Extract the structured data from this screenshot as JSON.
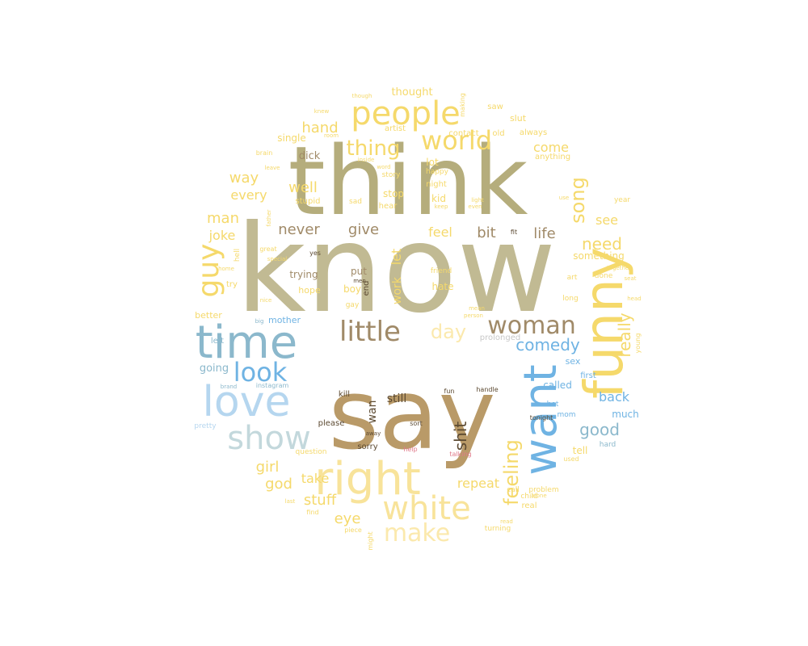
{
  "palette": {
    "olive": "#b5ad7c",
    "olive_light": "#c1ba93",
    "tan": "#b99a68",
    "gold": "#f5d96b",
    "gold_light": "#f8e39a",
    "cream": "#fbe9ad",
    "sky": "#6fb3e3",
    "steel": "#8bb8cc",
    "pale_blue": "#b5d6ef",
    "mist": "#c3d8dc",
    "brown": "#a08a68",
    "dark": "#5c4a32",
    "grey": "#c8c8c8",
    "pink": "#e07a8a"
  },
  "words": [
    {
      "t": "know",
      "c": "olive_light",
      "rot": 0
    },
    {
      "t": "think",
      "c": "olive",
      "rot": 0
    },
    {
      "t": "say",
      "c": "tan",
      "rot": 0
    },
    {
      "t": "right",
      "c": "gold_light",
      "rot": 0
    },
    {
      "t": "funny",
      "c": "gold",
      "rot": 270
    },
    {
      "t": "want",
      "c": "sky",
      "rot": 270
    },
    {
      "t": "time",
      "c": "steel",
      "rot": 0
    },
    {
      "t": "love",
      "c": "pale_blue",
      "rot": 0
    },
    {
      "t": "people",
      "c": "gold",
      "rot": 0
    },
    {
      "t": "show",
      "c": "mist",
      "rot": 0
    },
    {
      "t": "white",
      "c": "gold_light",
      "rot": 0
    },
    {
      "t": "world",
      "c": "gold",
      "rot": 0
    },
    {
      "t": "little",
      "c": "brown",
      "rot": 0
    },
    {
      "t": "woman",
      "c": "brown",
      "rot": 0
    },
    {
      "t": "make",
      "c": "cream",
      "rot": 0
    },
    {
      "t": "look",
      "c": "sky",
      "rot": 0
    },
    {
      "t": "guy",
      "c": "gold",
      "rot": 270
    },
    {
      "t": "day",
      "c": "cream",
      "rot": 0
    },
    {
      "t": "thing",
      "c": "gold",
      "rot": 0
    },
    {
      "t": "shit",
      "c": "dark",
      "rot": 270
    },
    {
      "t": "feeling",
      "c": "gold",
      "rot": 270
    },
    {
      "t": "song",
      "c": "gold",
      "rot": 270
    },
    {
      "t": "really",
      "c": "gold",
      "rot": 270
    },
    {
      "t": "comedy",
      "c": "sky",
      "rot": 0
    },
    {
      "t": "good",
      "c": "steel",
      "rot": 0
    },
    {
      "t": "need",
      "c": "gold",
      "rot": 0
    },
    {
      "t": "life",
      "c": "brown",
      "rot": 0
    },
    {
      "t": "bit",
      "c": "brown",
      "rot": 0
    },
    {
      "t": "give",
      "c": "brown",
      "rot": 0
    },
    {
      "t": "never",
      "c": "brown",
      "rot": 0
    },
    {
      "t": "stuff",
      "c": "gold",
      "rot": 0
    },
    {
      "t": "eye",
      "c": "gold",
      "rot": 0
    },
    {
      "t": "girl",
      "c": "gold",
      "rot": 0
    },
    {
      "t": "god",
      "c": "gold",
      "rot": 0
    },
    {
      "t": "take",
      "c": "gold",
      "rot": 0
    },
    {
      "t": "repeat",
      "c": "gold",
      "rot": 0
    },
    {
      "t": "hand",
      "c": "gold",
      "rot": 0
    },
    {
      "t": "way",
      "c": "gold",
      "rot": 0
    },
    {
      "t": "every",
      "c": "gold",
      "rot": 0
    },
    {
      "t": "well",
      "c": "gold",
      "rot": 0
    },
    {
      "t": "man",
      "c": "gold",
      "rot": 0
    },
    {
      "t": "joke",
      "c": "gold",
      "rot": 0
    },
    {
      "t": "come",
      "c": "gold",
      "rot": 0
    },
    {
      "t": "see",
      "c": "gold",
      "rot": 0
    },
    {
      "t": "back",
      "c": "sky",
      "rot": 0
    },
    {
      "t": "feel",
      "c": "gold",
      "rot": 0
    },
    {
      "t": "let",
      "c": "gold",
      "rot": 270
    },
    {
      "t": "work",
      "c": "gold",
      "rot": 270
    },
    {
      "t": "wan",
      "c": "dark",
      "rot": 270
    },
    {
      "t": "still",
      "c": "dark",
      "rot": 0
    },
    {
      "t": "going",
      "c": "steel",
      "rot": 0
    },
    {
      "t": "tell",
      "c": "gold",
      "rot": 0
    },
    {
      "t": "something",
      "c": "gold",
      "rot": 0
    },
    {
      "t": "much",
      "c": "sky",
      "rot": 0
    },
    {
      "t": "called",
      "c": "sky",
      "rot": 0
    },
    {
      "t": "hate",
      "c": "gold",
      "rot": 0
    },
    {
      "t": "trying",
      "c": "brown",
      "rot": 0
    },
    {
      "t": "dick",
      "c": "brown",
      "rot": 0
    },
    {
      "t": "thought",
      "c": "gold",
      "rot": 0
    },
    {
      "t": "stop",
      "c": "gold",
      "rot": 0
    },
    {
      "t": "kid",
      "c": "gold",
      "rot": 0
    },
    {
      "t": "lot",
      "c": "gold",
      "rot": 0
    },
    {
      "t": "single",
      "c": "gold",
      "rot": 0
    },
    {
      "t": "put",
      "c": "brown",
      "rot": 0
    },
    {
      "t": "boy",
      "c": "gold",
      "rot": 0
    },
    {
      "t": "better",
      "c": "gold",
      "rot": 0
    },
    {
      "t": "hope",
      "c": "gold",
      "rot": 0
    },
    {
      "t": "mother",
      "c": "sky",
      "rot": 0
    },
    {
      "t": "sex",
      "c": "sky",
      "rot": 0
    },
    {
      "t": "slut",
      "c": "gold",
      "rot": 0
    },
    {
      "t": "stupid",
      "c": "gold",
      "rot": 0
    },
    {
      "t": "sorry",
      "c": "dark",
      "rot": 0
    },
    {
      "t": "please",
      "c": "dark",
      "rot": 0
    },
    {
      "t": "kill",
      "c": "dark",
      "rot": 0
    },
    {
      "t": "prolonged",
      "c": "grey",
      "rot": 0
    },
    {
      "t": "left",
      "c": "steel",
      "rot": 0
    },
    {
      "t": "first",
      "c": "sky",
      "rot": 0
    },
    {
      "t": "hot",
      "c": "sky",
      "rot": 0
    },
    {
      "t": "tonight",
      "c": "dark",
      "rot": 0
    },
    {
      "t": "mom",
      "c": "sky",
      "rot": 0
    },
    {
      "t": "handle",
      "c": "dark",
      "rot": 0
    },
    {
      "t": "fun",
      "c": "dark",
      "rot": 0
    },
    {
      "t": "sort",
      "c": "dark",
      "rot": 0
    },
    {
      "t": "away",
      "c": "dark",
      "rot": 0
    },
    {
      "t": "help",
      "c": "pink",
      "rot": 0
    },
    {
      "t": "talking",
      "c": "pink",
      "rot": 0
    },
    {
      "t": "question",
      "c": "gold",
      "rot": 0
    },
    {
      "t": "end",
      "c": "dark",
      "rot": 270
    },
    {
      "t": "gay",
      "c": "gold",
      "rot": 0
    },
    {
      "t": "friend",
      "c": "gold",
      "rot": 0
    },
    {
      "t": "artist",
      "c": "gold",
      "rot": 0
    },
    {
      "t": "contact",
      "c": "gold",
      "rot": 0
    },
    {
      "t": "old",
      "c": "gold",
      "rot": 0
    },
    {
      "t": "night",
      "c": "gold",
      "rot": 0
    },
    {
      "t": "story",
      "c": "gold",
      "rot": 0
    },
    {
      "t": "happy",
      "c": "gold",
      "rot": 0
    },
    {
      "t": "hear",
      "c": "gold",
      "rot": 0
    },
    {
      "t": "sad",
      "c": "gold",
      "rot": 0
    },
    {
      "t": "always",
      "c": "gold",
      "rot": 0
    },
    {
      "t": "anything",
      "c": "gold",
      "rot": 0
    },
    {
      "t": "saw",
      "c": "gold",
      "rot": 0
    },
    {
      "t": "making",
      "c": "gold",
      "rot": 270
    },
    {
      "t": "brain",
      "c": "gold",
      "rot": 0
    },
    {
      "t": "knew",
      "c": "gold",
      "rot": 0
    },
    {
      "t": "though",
      "c": "gold",
      "rot": 0
    },
    {
      "t": "inside",
      "c": "gold",
      "rot": 0
    },
    {
      "t": "word",
      "c": "gold",
      "rot": 0
    },
    {
      "t": "room",
      "c": "gold",
      "rot": 0
    },
    {
      "t": "leave",
      "c": "gold",
      "rot": 0
    },
    {
      "t": "try",
      "c": "gold",
      "rot": 0
    },
    {
      "t": "father",
      "c": "gold",
      "rot": 270
    },
    {
      "t": "hell",
      "c": "gold",
      "rot": 270
    },
    {
      "t": "home",
      "c": "gold",
      "rot": 0
    },
    {
      "t": "great",
      "c": "gold",
      "rot": 0
    },
    {
      "t": "special",
      "c": "gold",
      "rot": 0
    },
    {
      "t": "yes",
      "c": "dark",
      "rot": 0
    },
    {
      "t": "men",
      "c": "dark",
      "rot": 0
    },
    {
      "t": "nice",
      "c": "gold",
      "rot": 0
    },
    {
      "t": "big",
      "c": "steel",
      "rot": 0
    },
    {
      "t": "brand",
      "c": "steel",
      "rot": 0
    },
    {
      "t": "instagram",
      "c": "steel",
      "rot": 0
    },
    {
      "t": "pretty",
      "c": "pale_blue",
      "rot": 0
    },
    {
      "t": "hard",
      "c": "steel",
      "rot": 0
    },
    {
      "t": "used",
      "c": "gold",
      "rot": 0
    },
    {
      "t": "young",
      "c": "gold",
      "rot": 270
    },
    {
      "t": "head",
      "c": "gold",
      "rot": 0
    },
    {
      "t": "long",
      "c": "gold",
      "rot": 0
    },
    {
      "t": "art",
      "c": "gold",
      "rot": 0
    },
    {
      "t": "seat",
      "c": "gold",
      "rot": 0
    },
    {
      "t": "together",
      "c": "gold",
      "rot": 0
    },
    {
      "t": "done",
      "c": "gold",
      "rot": 0
    },
    {
      "t": "year",
      "c": "gold",
      "rot": 0
    },
    {
      "t": "use",
      "c": "gold",
      "rot": 0
    },
    {
      "t": "fit",
      "c": "dark",
      "rot": 0
    },
    {
      "t": "light",
      "c": "gold",
      "rot": 0
    },
    {
      "t": "even",
      "c": "gold",
      "rot": 0
    },
    {
      "t": "keep",
      "c": "gold",
      "rot": 0
    },
    {
      "t": "mean",
      "c": "gold",
      "rot": 0
    },
    {
      "t": "person",
      "c": "gold",
      "rot": 0
    },
    {
      "t": "call",
      "c": "gold",
      "rot": 0
    },
    {
      "t": "child",
      "c": "gold",
      "rot": 0
    },
    {
      "t": "problem",
      "c": "gold",
      "rot": 0
    },
    {
      "t": "alone",
      "c": "gold",
      "rot": 0
    },
    {
      "t": "real",
      "c": "gold",
      "rot": 0
    },
    {
      "t": "read",
      "c": "gold",
      "rot": 0
    },
    {
      "t": "turning",
      "c": "gold",
      "rot": 0
    },
    {
      "t": "piece",
      "c": "gold",
      "rot": 0
    },
    {
      "t": "might",
      "c": "gold",
      "rot": 270
    },
    {
      "t": "find",
      "c": "gold",
      "rot": 0
    },
    {
      "t": "last",
      "c": "gold",
      "rot": 0
    }
  ]
}
